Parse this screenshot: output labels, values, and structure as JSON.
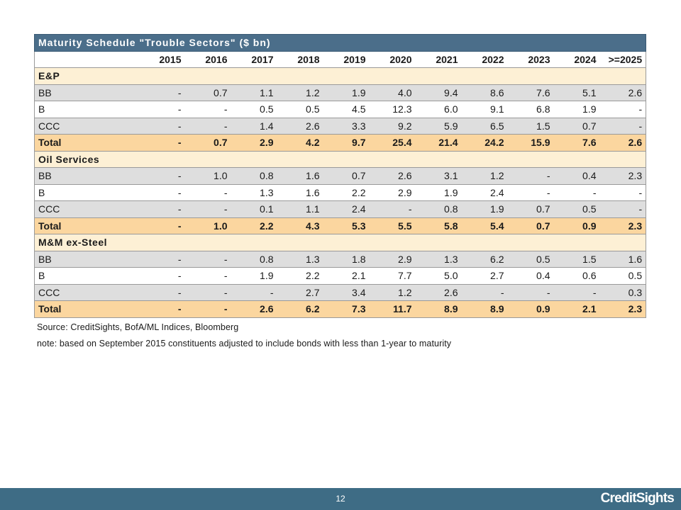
{
  "table": {
    "title": "Maturity Schedule \"Trouble Sectors\" ($ bn)",
    "years": [
      "2015",
      "2016",
      "2017",
      "2018",
      "2019",
      "2020",
      "2021",
      "2022",
      "2023",
      "2024",
      ">=2025"
    ],
    "sectors": [
      {
        "name": "E&P",
        "rows": [
          {
            "label": "BB",
            "values": [
              "-",
              "0.7",
              "1.1",
              "1.2",
              "1.9",
              "4.0",
              "9.4",
              "8.6",
              "7.6",
              "5.1",
              "2.6"
            ]
          },
          {
            "label": "B",
            "values": [
              "-",
              "-",
              "0.5",
              "0.5",
              "4.5",
              "12.3",
              "6.0",
              "9.1",
              "6.8",
              "1.9",
              "-"
            ]
          },
          {
            "label": "CCC",
            "values": [
              "-",
              "-",
              "1.4",
              "2.6",
              "3.3",
              "9.2",
              "5.9",
              "6.5",
              "1.5",
              "0.7",
              "-"
            ]
          }
        ],
        "total": {
          "label": "Total",
          "values": [
            "-",
            "0.7",
            "2.9",
            "4.2",
            "9.7",
            "25.4",
            "21.4",
            "24.2",
            "15.9",
            "7.6",
            "2.6"
          ]
        }
      },
      {
        "name": "Oil Services",
        "rows": [
          {
            "label": "BB",
            "values": [
              "-",
              "1.0",
              "0.8",
              "1.6",
              "0.7",
              "2.6",
              "3.1",
              "1.2",
              "-",
              "0.4",
              "2.3"
            ]
          },
          {
            "label": "B",
            "values": [
              "-",
              "-",
              "1.3",
              "1.6",
              "2.2",
              "2.9",
              "1.9",
              "2.4",
              "-",
              "-",
              "-"
            ]
          },
          {
            "label": "CCC",
            "values": [
              "-",
              "-",
              "0.1",
              "1.1",
              "2.4",
              "-",
              "0.8",
              "1.9",
              "0.7",
              "0.5",
              "-"
            ]
          }
        ],
        "total": {
          "label": "Total",
          "values": [
            "-",
            "1.0",
            "2.2",
            "4.3",
            "5.3",
            "5.5",
            "5.8",
            "5.4",
            "0.7",
            "0.9",
            "2.3"
          ]
        }
      },
      {
        "name": "M&M ex-Steel",
        "rows": [
          {
            "label": "BB",
            "values": [
              "-",
              "-",
              "0.8",
              "1.3",
              "1.8",
              "2.9",
              "1.3",
              "6.2",
              "0.5",
              "1.5",
              "1.6"
            ]
          },
          {
            "label": "B",
            "values": [
              "-",
              "-",
              "1.9",
              "2.2",
              "2.1",
              "7.7",
              "5.0",
              "2.7",
              "0.4",
              "0.6",
              "0.5"
            ]
          },
          {
            "label": "CCC",
            "values": [
              "-",
              "-",
              "-",
              "2.7",
              "3.4",
              "1.2",
              "2.6",
              "-",
              "-",
              "-",
              "0.3"
            ]
          }
        ],
        "total": {
          "label": "Total",
          "values": [
            "-",
            "-",
            "2.6",
            "6.2",
            "7.3",
            "11.7",
            "8.9",
            "8.9",
            "0.9",
            "2.1",
            "2.3"
          ]
        }
      }
    ]
  },
  "notes": {
    "source": "Source: CreditSights, BofA/ML Indices, Bloomberg",
    "method": "note: based on September 2015 constituents adjusted to include bonds with less than 1-year to maturity"
  },
  "footer": {
    "page_number": "12",
    "logo_text": "CreditSights"
  },
  "colors": {
    "title_bar": "#4b6e8a",
    "sector_row": "#fdf0d5",
    "total_row": "#fbd69f",
    "shaded_row": "#dedede",
    "footer_bar": "#3e6c85"
  }
}
